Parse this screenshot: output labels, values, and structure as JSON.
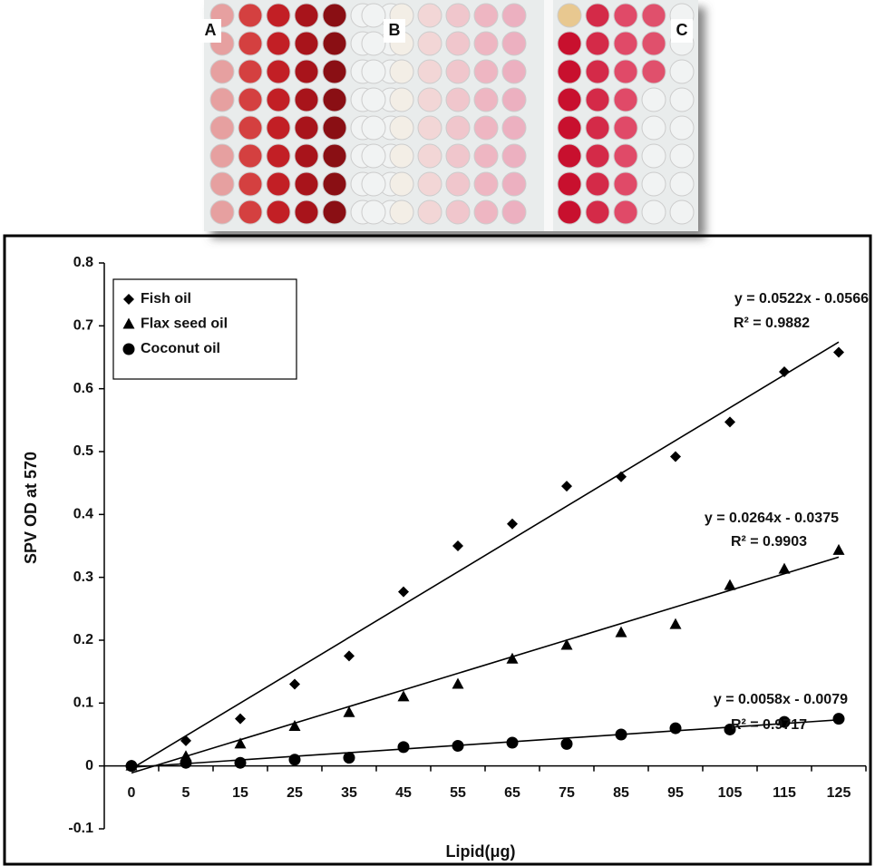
{
  "photo": {
    "labels": [
      "A",
      "B",
      "C"
    ]
  },
  "chart_data": {
    "type": "scatter",
    "x_label": "Lipid(μg)",
    "y_label": "SPV OD at 570",
    "categories": [
      0,
      5,
      15,
      25,
      35,
      45,
      55,
      65,
      75,
      85,
      95,
      105,
      115,
      125
    ],
    "ylim": [
      -0.1,
      0.8
    ],
    "yticks": [
      -0.1,
      0,
      0.1,
      0.2,
      0.3,
      0.4,
      0.5,
      0.6,
      0.7,
      0.8
    ],
    "legend": "upper left",
    "series": [
      {
        "name": "Fish oil",
        "color": "#000000",
        "marker": "diamond",
        "values": [
          0,
          0.04,
          0.075,
          0.13,
          0.175,
          0.277,
          0.35,
          0.385,
          0.445,
          0.46,
          0.492,
          0.547,
          0.627,
          0.658
        ],
        "trend": {
          "slope": 0.0522,
          "intercept": -0.0566,
          "label": "y = 0.0522x - 0.0566",
          "r2": {
            "value": 0.9882,
            "label": "R² = 0.9882"
          }
        }
      },
      {
        "name": "Flax seed oil",
        "color": "#000000",
        "marker": "triangle",
        "values": [
          0,
          0.015,
          0.035,
          0.063,
          0.085,
          0.11,
          0.13,
          0.17,
          0.192,
          0.212,
          0.225,
          0.287,
          0.313,
          0.343
        ],
        "trend": {
          "slope": 0.0264,
          "intercept": -0.0375,
          "label": "y = 0.0264x - 0.0375",
          "r2": {
            "value": 0.9903,
            "label": "R² = 0.9903"
          }
        }
      },
      {
        "name": "Coconut oil",
        "color": "#000000",
        "marker": "circle",
        "values": [
          0,
          0.005,
          0.005,
          0.01,
          0.013,
          0.03,
          0.032,
          0.037,
          0.035,
          0.05,
          0.06,
          0.058,
          0.07,
          0.075
        ],
        "trend": {
          "slope": 0.0058,
          "intercept": -0.0079,
          "label": "y = 0.0058x - 0.0079",
          "r2": {
            "value": 0.9717,
            "label": "R² = 0.9717"
          }
        }
      }
    ]
  }
}
